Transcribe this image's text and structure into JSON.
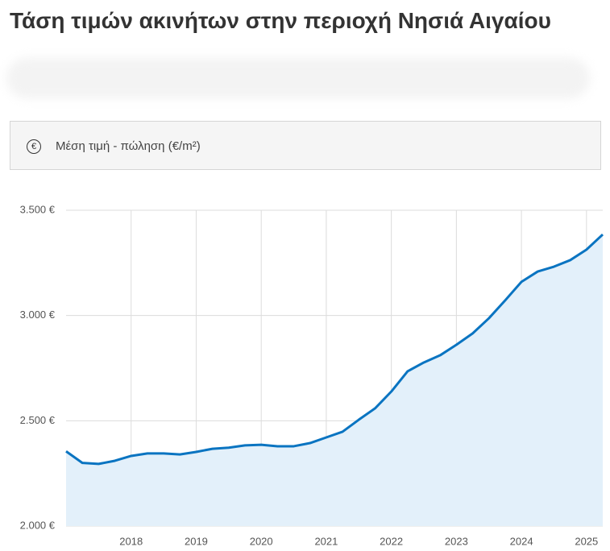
{
  "title": "Τάση τιμών ακινήτων στην περιοχή Νησιά Αιγαίου",
  "selector": {
    "label": "Μέση τιμή - πώληση (€/m²)"
  },
  "chart_data": {
    "type": "line",
    "x": [
      2017,
      2017.25,
      2017.5,
      2017.75,
      2018,
      2018.25,
      2018.5,
      2018.75,
      2019,
      2019.25,
      2019.5,
      2019.75,
      2020,
      2020.25,
      2020.5,
      2020.75,
      2021,
      2021.25,
      2021.5,
      2021.75,
      2022,
      2022.25,
      2022.5,
      2022.75,
      2023,
      2023.25,
      2023.5,
      2023.75,
      2024,
      2024.25,
      2024.5,
      2024.75,
      2025,
      2025.25
    ],
    "series": [
      {
        "color": "#0a74c1",
        "fill": "#e3f0fa",
        "values": [
          2355,
          2300,
          2295,
          2310,
          2333,
          2345,
          2345,
          2340,
          2352,
          2367,
          2372,
          2383,
          2386,
          2379,
          2379,
          2394,
          2421,
          2448,
          2505,
          2559,
          2639,
          2735,
          2777,
          2811,
          2861,
          2915,
          2987,
          3072,
          3160,
          3209,
          3232,
          3263,
          3313,
          3385
        ]
      }
    ],
    "xlim": [
      2017,
      2025.25
    ],
    "xticks": [
      2018,
      2019,
      2020,
      2021,
      2022,
      2023,
      2024,
      2025
    ],
    "ylim": [
      2000,
      3500
    ],
    "yticks": [
      {
        "value": 2000,
        "label": "2.000 €"
      },
      {
        "value": 2500,
        "label": "2.500 €"
      },
      {
        "value": 3000,
        "label": "3.000 €"
      },
      {
        "value": 3500,
        "label": "3.500 €"
      }
    ],
    "grid": true
  }
}
